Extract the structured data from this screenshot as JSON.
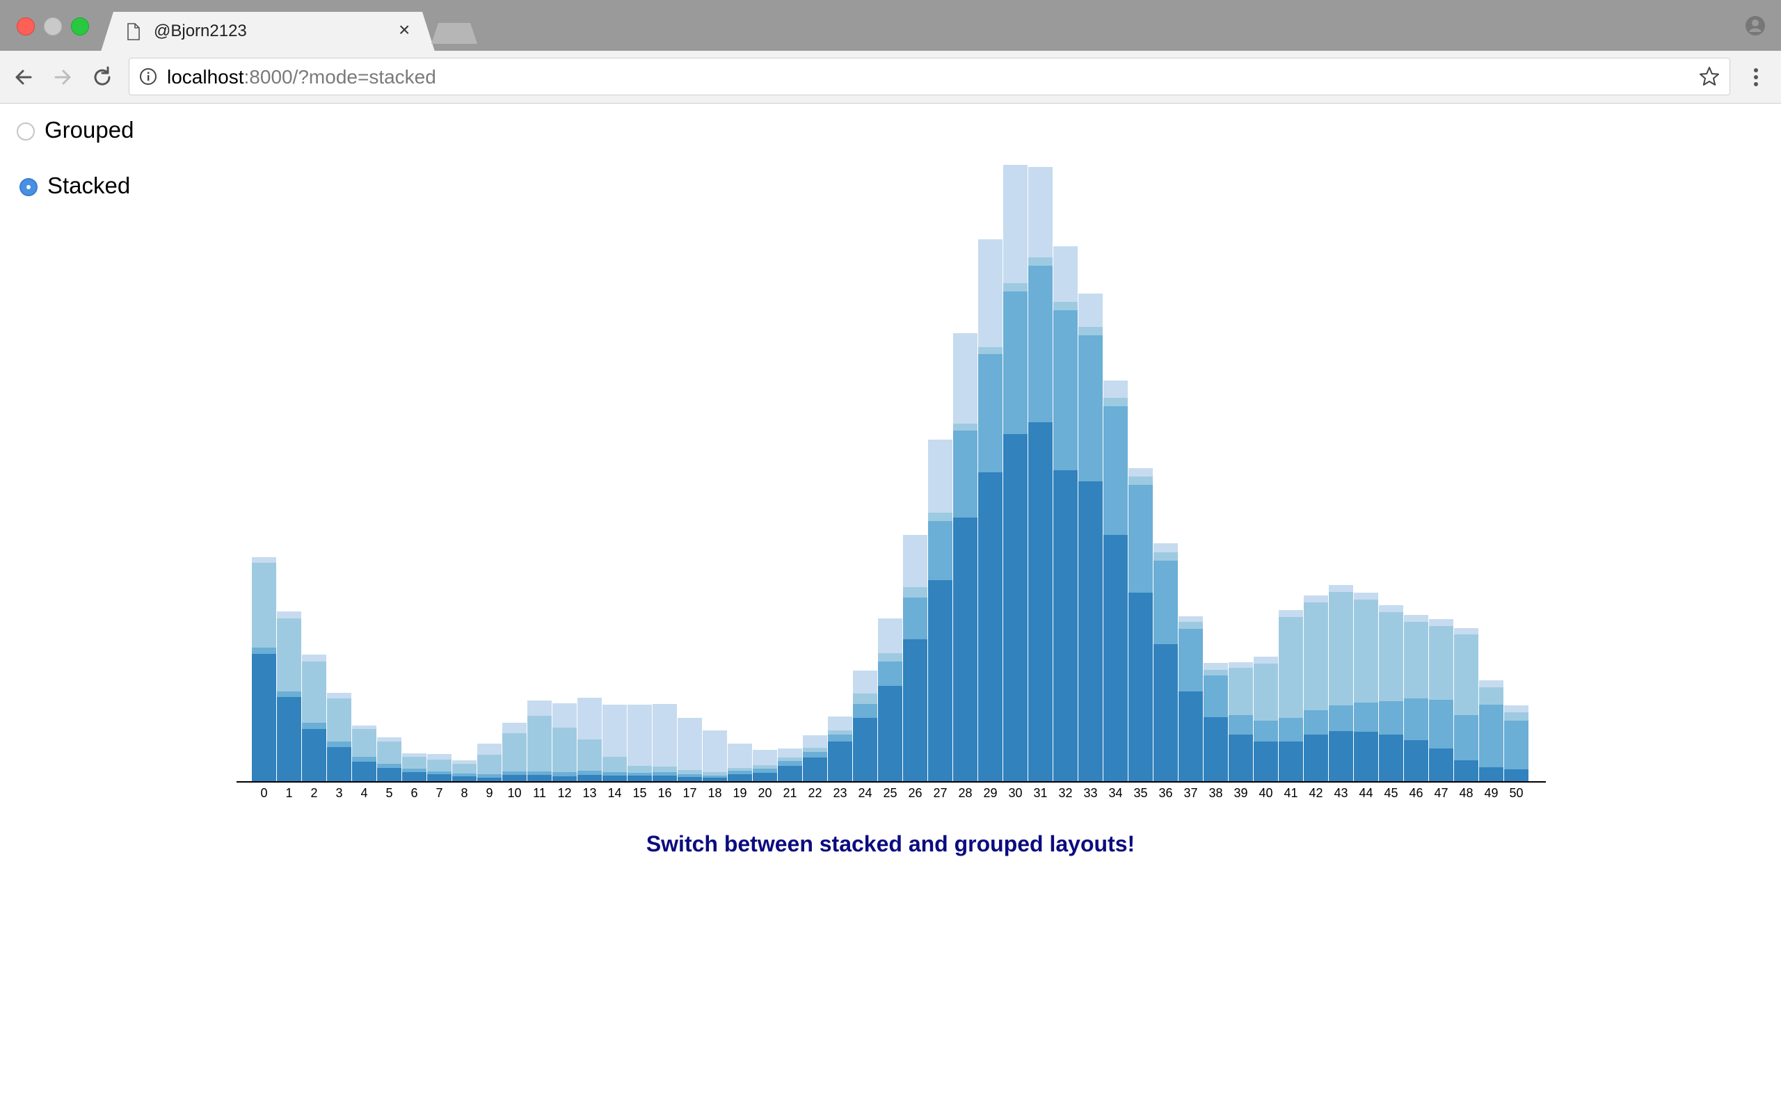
{
  "browser": {
    "tab_title": "@Bjorn2123",
    "tab_close": "×",
    "url_host": "localhost",
    "url_rest": ":8000/?mode=stacked"
  },
  "controls": {
    "options": [
      {
        "label": "Grouped",
        "selected": false
      },
      {
        "label": "Stacked",
        "selected": true
      }
    ]
  },
  "caption": "Switch between stacked and grouped layouts!",
  "chart_data": {
    "type": "bar",
    "stacked": true,
    "categories": [
      "0",
      "1",
      "2",
      "3",
      "4",
      "5",
      "6",
      "7",
      "8",
      "9",
      "10",
      "11",
      "12",
      "13",
      "14",
      "15",
      "16",
      "17",
      "18",
      "19",
      "20",
      "21",
      "22",
      "23",
      "24",
      "25",
      "26",
      "27",
      "28",
      "29",
      "30",
      "31",
      "32",
      "33",
      "34",
      "35",
      "36",
      "37",
      "38",
      "39",
      "40",
      "41",
      "42",
      "43",
      "44",
      "45",
      "46",
      "47",
      "48",
      "49",
      "50"
    ],
    "series": [
      {
        "color": "#3182bd",
        "values": [
          184,
          122,
          76,
          50,
          29,
          20,
          14,
          11,
          8,
          6,
          10,
          10,
          8,
          10,
          9,
          9,
          9,
          7,
          6,
          11,
          13,
          23,
          35,
          58,
          92,
          138,
          205,
          290,
          380,
          445,
          500,
          517,
          448,
          432,
          355,
          272,
          198,
          130,
          93,
          68,
          58,
          58,
          68,
          73,
          72,
          68,
          60,
          48,
          31,
          21,
          18
        ]
      },
      {
        "color": "#6baed6",
        "values": [
          9,
          8,
          9,
          8,
          7,
          6,
          5,
          4,
          4,
          5,
          5,
          5,
          6,
          6,
          5,
          4,
          5,
          4,
          3,
          5,
          6,
          7,
          8,
          10,
          20,
          35,
          60,
          85,
          125,
          170,
          205,
          225,
          230,
          210,
          185,
          155,
          120,
          90,
          60,
          28,
          30,
          34,
          35,
          37,
          42,
          48,
          60,
          70,
          65,
          90,
          70
        ]
      },
      {
        "color": "#9ecae1",
        "values": [
          122,
          105,
          88,
          62,
          40,
          32,
          17,
          17,
          14,
          28,
          55,
          80,
          64,
          45,
          22,
          10,
          8,
          6,
          5,
          4,
          5,
          5,
          6,
          6,
          15,
          12,
          15,
          12,
          10,
          10,
          12,
          12,
          12,
          12,
          12,
          12,
          12,
          10,
          8,
          68,
          82,
          145,
          155,
          163,
          148,
          128,
          110,
          106,
          116,
          25,
          12
        ]
      },
      {
        "color": "#c6dbef",
        "values": [
          8,
          10,
          10,
          8,
          5,
          6,
          5,
          8,
          5,
          16,
          15,
          22,
          35,
          60,
          75,
          88,
          90,
          75,
          60,
          35,
          22,
          13,
          18,
          20,
          33,
          50,
          75,
          105,
          130,
          155,
          170,
          130,
          80,
          48,
          25,
          12,
          13,
          8,
          10,
          8,
          10,
          10,
          10,
          10,
          10,
          10,
          10,
          10,
          9,
          10,
          10
        ]
      }
    ],
    "xlabel": "",
    "ylabel": "",
    "ylim": [
      0,
      880
    ],
    "grid": false,
    "legend": "none"
  }
}
